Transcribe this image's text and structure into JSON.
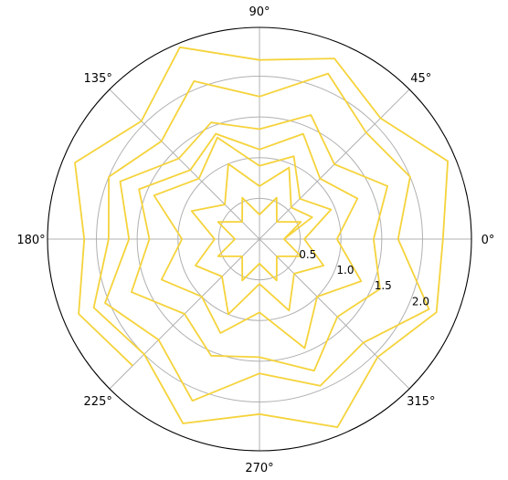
{
  "chart_data": {
    "type": "line",
    "projection": "polar",
    "title": "",
    "angle_tick_labels": [
      "0°",
      "45°",
      "90°",
      "135°",
      "180°",
      "225°",
      "270°",
      "315°"
    ],
    "radial_tick_labels": [
      "0.5",
      "1.0",
      "1.5",
      "2.0"
    ],
    "radial_ticks": [
      0.5,
      1.0,
      1.5,
      2.0
    ],
    "rlim": [
      0,
      2.6
    ],
    "radial_label_angle_deg": 22.5,
    "grid": true,
    "series": [
      {
        "color": "#f5d33b",
        "angle_step_deg": 22.5,
        "r": [
          0.3,
          0.55,
          0.3,
          0.55,
          0.3,
          0.55,
          0.3,
          0.55,
          0.3,
          0.55,
          0.3,
          0.55,
          0.3,
          0.55,
          0.3,
          0.55,
          0.3,
          0.55,
          0.3,
          0.55,
          0.3,
          0.55,
          0.3,
          0.55,
          0.3,
          0.55,
          0.3,
          0.55,
          0.3,
          0.55,
          0.3,
          0.55,
          0.3,
          0.7,
          0.55,
          0.95,
          0.65,
          1.0,
          0.6,
          0.9,
          0.55,
          0.85,
          0.65,
          1.0,
          0.55,
          0.95,
          0.6,
          0.85,
          0.55,
          0.95,
          0.7,
          1.1,
          0.9,
          1.35,
          1.05,
          1.4,
          0.95,
          1.3,
          1.0,
          1.25,
          0.9,
          1.45,
          1.0,
          1.35,
          0.95,
          1.3,
          1.05,
          1.4,
          1.1,
          1.4,
          1.2,
          1.6,
          1.35,
          1.7,
          1.3,
          1.55,
          1.45,
          1.75,
          1.35,
          1.6,
          1.4,
          1.7,
          1.3,
          1.65,
          1.35,
          1.55,
          1.4,
          1.85,
          1.6,
          2.05,
          1.75,
          2.15,
          1.65,
          1.95,
          1.8,
          2.25,
          1.7,
          2.0,
          1.85,
          2.2,
          1.75,
          2.1,
          1.7,
          2.0,
          1.85,
          2.2,
          2.0,
          2.45,
          2.15,
          2.5,
          2.05,
          2.35,
          2.25,
          2.5,
          2.1,
          2.4,
          2.2,
          2.55,
          2.05,
          2.45,
          2.15,
          2.4,
          2.2
        ]
      }
    ]
  }
}
